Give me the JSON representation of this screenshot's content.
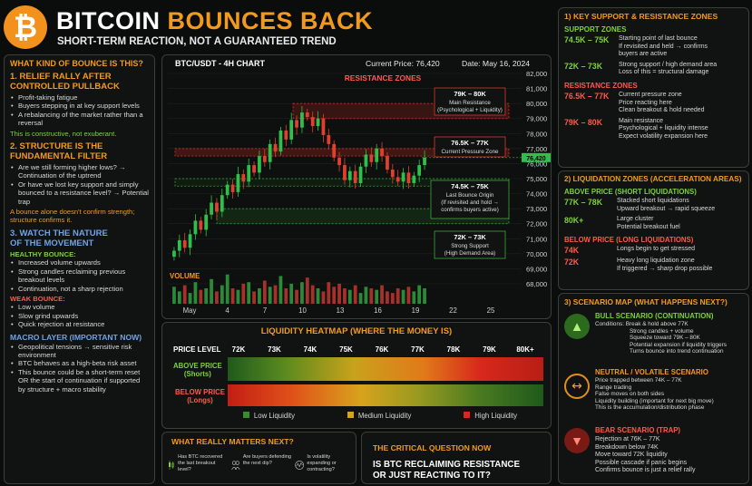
{
  "header": {
    "title_a": "BITCOIN",
    "title_b": "BOUNCES BACK",
    "subtitle": "SHORT-TERM REACTION, NOT A GUARANTEED TREND",
    "logo": "bitcoin-logo"
  },
  "left": {
    "title": "WHAT KIND OF BOUNCE IS THIS?",
    "s1": {
      "title": "1. RELIEF RALLY AFTER\nCONTROLLED PULLBACK",
      "items": [
        "Profit-taking fatigue",
        "Buyers stepping in at key support levels",
        "A rebalancing of the market rather than a reversal"
      ],
      "note": "This is constructive, not exuberant."
    },
    "s2": {
      "title": "2. STRUCTURE IS THE\nFUNDAMENTAL FILTER",
      "items": [
        "Are we still forming higher lows? → Continuation of the uptrend",
        "Or have we lost key support and simply bounced to a resistance level? → Potential trap"
      ],
      "note": "A bounce alone doesn't confirm strength; structure confirms it."
    },
    "s3": {
      "title": "3. WATCH THE NATURE\nOF THE MOVEMENT",
      "healthy_title": "HEALTHY BOUNCE:",
      "healthy": [
        "Increased volume upwards",
        "Strong candles reclaiming previous breakout levels",
        "Continuation, not a sharp rejection"
      ],
      "weak_title": "WEAK BOUNCE:",
      "weak": [
        "Low volume",
        "Slow grind upwards",
        "Quick rejection at resistance"
      ]
    },
    "macro": {
      "title": "MACRO LAYER (IMPORTANT NOW)",
      "items": [
        "Geopolitical tensions → sensitive risk environment",
        "BTC behaves as a high-beta risk asset",
        "This bounce could be a short-term reset OR the start of continuation if supported by structure + macro stability"
      ]
    }
  },
  "chart_header": {
    "pair": "BTC/USDT - 4H CHART",
    "price": "Current Price: 76,420",
    "date": "Date: May 16, 2024"
  },
  "chart_data": {
    "type": "candlestick",
    "title": "BTC/USDT - 4H CHART",
    "ylim": [
      68000,
      82000
    ],
    "y_ticks": [
      "82,000",
      "81,000",
      "80,000",
      "79,000",
      "78,000",
      "77,000",
      "76,000",
      "75,000",
      "74,000",
      "73,000",
      "72,000",
      "71,000",
      "70,000",
      "69,000",
      "68,000"
    ],
    "x_ticks": [
      "May",
      "4",
      "7",
      "10",
      "13",
      "16",
      "19",
      "22",
      "25"
    ],
    "current_price_tag": "76,420",
    "close": [
      70200,
      70900,
      70400,
      71300,
      72200,
      71600,
      72600,
      73400,
      72800,
      73900,
      74600,
      74100,
      75300,
      74800,
      75900,
      75400,
      76500,
      76100,
      77300,
      76800,
      78200,
      77600,
      78900,
      78400,
      79400,
      79100,
      78500,
      79000,
      77900,
      77300,
      76400,
      75900,
      74900,
      75500,
      74700,
      75800,
      76600,
      76100,
      77000,
      76500,
      75600,
      75100,
      74800,
      75400,
      74700,
      75200,
      75900,
      76400
    ],
    "volume": [
      0.55,
      0.4,
      0.6,
      0.35,
      0.7,
      0.45,
      0.5,
      0.8,
      0.4,
      0.6,
      0.95,
      0.5,
      0.45,
      0.65,
      0.7,
      0.4,
      0.5,
      0.75,
      0.55,
      0.6,
      0.9,
      0.5,
      0.65,
      0.45,
      0.7,
      0.85,
      0.6,
      0.5,
      0.4,
      0.7,
      0.55,
      0.65,
      0.5,
      0.45,
      0.6,
      0.35,
      0.55,
      0.5,
      0.45,
      0.6,
      0.4,
      0.35,
      0.5,
      0.45,
      0.55,
      0.4,
      0.6,
      0.5
    ]
  },
  "chart_labels": {
    "resistance_zones": "RESISTANCE ZONES",
    "volume": "VOLUME",
    "box1": {
      "range": "79K – 80K",
      "desc": "Main Resistance\n(Psychological + Liquidity)"
    },
    "box2": {
      "range": "76.5K – 77K",
      "desc": "Current Pressure Zone"
    },
    "box3": {
      "range": "74.5K – 75K",
      "desc": "Last Bounce Origin\n(If revisited and hold →\nconfirms buyers active)"
    },
    "box4": {
      "range": "72K – 73K",
      "desc": "Strong Support\n(High Demand Area)"
    }
  },
  "heatmap": {
    "title": "LIQUIDITY HEATMAP (WHERE THE MONEY IS)",
    "price_level": "PRICE LEVEL",
    "levels": [
      "72K",
      "73K",
      "74K",
      "75K",
      "76K",
      "77K",
      "78K",
      "79K",
      "80K+"
    ],
    "above": "ABOVE PRICE\n(Shorts)",
    "below": "BELOW PRICE\n(Longs)",
    "legend": [
      "Low Liquidity",
      "Medium Liquidity",
      "High Liquidity"
    ],
    "colors": {
      "low": "#3a8a2e",
      "medium": "#d8a21c",
      "high": "#d8281c"
    }
  },
  "bottom": {
    "matters_title": "WHAT REALLY MATTERS NEXT?",
    "q1": "Has BTC recovered the last breakout level?",
    "q2": "Are buyers defending the next dip?",
    "q3": "Is volatility expanding or contracting?",
    "critical_title": "THE CRITICAL QUESTION NOW",
    "critical_q": "IS BTC RECLAIMING RESISTANCE\nOR JUST REACTING TO IT?"
  },
  "right": {
    "key_title": "1) KEY SUPPORT & RESISTANCE ZONES",
    "support_title": "SUPPORT ZONES",
    "support": [
      {
        "range": "74.5K – 75K",
        "desc": "Starting point of last bounce\nIf revisited and held → confirms\nbuyers are active"
      },
      {
        "range": "72K – 73K",
        "desc": "Strong support / high demand area\nLoss of this = structural damage"
      }
    ],
    "resist_title": "RESISTANCE ZONES",
    "resist": [
      {
        "range": "76.5K – 77K",
        "desc": "Current pressure zone\nPrice reacting here\nClean breakout & hold needed"
      },
      {
        "range": "79K – 80K",
        "desc": "Main resistance\nPsychological + liquidity intense\nExpect volatility expansion here"
      }
    ],
    "liq_title": "2) LIQUIDATION ZONES (ACCELERATION AREAS)",
    "above_title": "ABOVE PRICE (SHORT LIQUIDATIONS)",
    "above": [
      {
        "range": "77K – 78K",
        "desc": "Stacked short liquidations\nUpward breakout → rapid squeeze"
      },
      {
        "range": "80K+",
        "desc": "Large cluster\nPotential breakout fuel"
      }
    ],
    "below_title": "BELOW PRICE (LONG LIQUIDATIONS)",
    "below": [
      {
        "range": "74K",
        "desc": "Longs begin to get stressed"
      },
      {
        "range": "72K",
        "desc": "Heavy long liquidation zone\nIf triggered → sharp drop possible"
      }
    ],
    "scen_title": "3) SCENARIO MAP (WHAT HAPPENS NEXT?)",
    "bull": {
      "title": "BULL SCENARIO (CONTINUATION)",
      "lines": [
        "Conditions: Break & hold above 77K",
        "Strong candles + volume",
        "Squeeze toward 79K – 80K",
        "Potential expansion if liquidity triggers",
        "Turns bounce into trend continuation"
      ]
    },
    "neutral": {
      "title": "NEUTRAL / VOLATILE SCENARIO",
      "lines": [
        "Price trapped between 74K – 77K",
        "Range trading",
        "False moves on both sides",
        "Liquidity building (important for next big move)",
        "This is the accumulation/distribution phase"
      ]
    },
    "bear": {
      "title": "BEAR SCENARIO (TRAP)",
      "lines": [
        "Rejection at 76K – 77K",
        "Breakdown below 74K",
        "Move toward 72K liquidity",
        "Possible cascade if panic begins",
        "Confirms bounce is just a relief rally"
      ]
    }
  }
}
